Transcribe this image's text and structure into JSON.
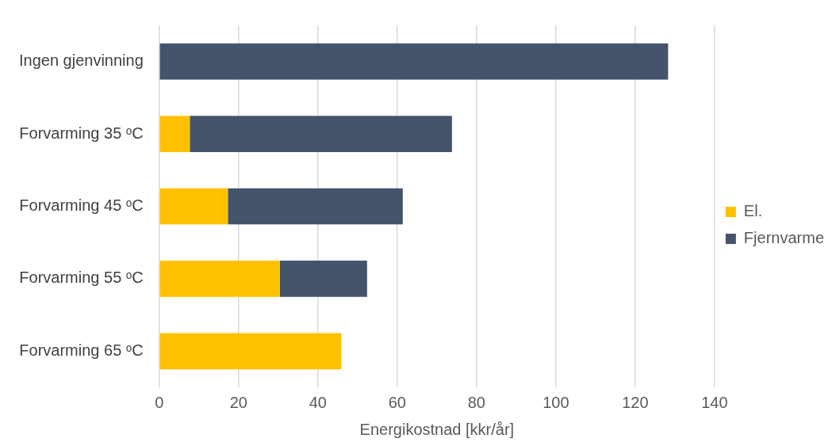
{
  "chart_data": {
    "type": "bar",
    "orientation": "horizontal",
    "stacked": true,
    "categories": [
      "Ingen gjenvinning",
      "Forvarming 35 ᵒC",
      "Forvarming 45 ᵒC",
      "Forvarming 55 ᵒC",
      "Forvarming 65 ᵒC"
    ],
    "series": [
      {
        "name": "El.",
        "color": "#ffc000",
        "values": [
          0,
          7.7,
          17.3,
          30.4,
          45.9
        ]
      },
      {
        "name": "Fjernvarme",
        "color": "#44546a",
        "values": [
          128.3,
          66.1,
          44.1,
          22.0,
          0
        ]
      }
    ],
    "xlabel": "Energikostnad [kkr/år]",
    "xlim": [
      0,
      140
    ],
    "xticks": [
      0,
      20,
      40,
      60,
      80,
      100,
      120,
      140
    ],
    "grid": "x",
    "legend": "right"
  }
}
